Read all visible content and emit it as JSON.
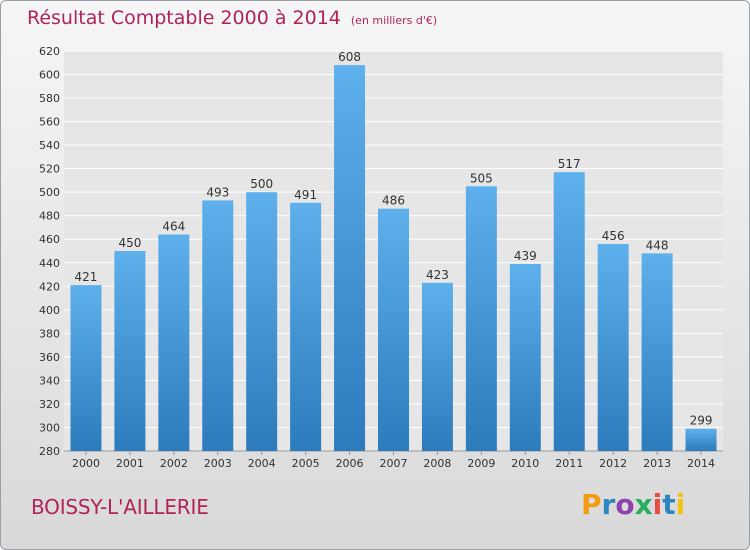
{
  "title": "Résultat Comptable 2000 à 2014",
  "subtitle": "(en milliers d'€)",
  "commune": "BOISSY-L'AILLERIE",
  "logo": {
    "letters": [
      "P",
      "r",
      "o",
      "x",
      "i",
      "t",
      "i"
    ],
    "colors": [
      "#f39c12",
      "#2e86c1",
      "#8e44ad",
      "#27ae60",
      "#e74c3c",
      "#2e86c1",
      "#f1c40f"
    ]
  },
  "colors": {
    "bar_top": "#5eb0ec",
    "bar_bottom": "#2c7bbd",
    "plot_bg": "#e6e6e6",
    "grid": "#ffffff",
    "title": "#b0235b"
  },
  "chart_data": {
    "type": "bar",
    "title": "Résultat Comptable 2000 à 2014",
    "xlabel": "",
    "ylabel": "",
    "categories": [
      "2000",
      "2001",
      "2002",
      "2003",
      "2004",
      "2005",
      "2006",
      "2007",
      "2008",
      "2009",
      "2010",
      "2011",
      "2012",
      "2013",
      "2014"
    ],
    "values": [
      421,
      450,
      464,
      493,
      500,
      491,
      608,
      486,
      423,
      505,
      439,
      517,
      456,
      448,
      299
    ],
    "ylim": [
      280,
      620
    ],
    "yticks": [
      280,
      300,
      320,
      340,
      360,
      380,
      400,
      420,
      440,
      460,
      480,
      500,
      520,
      540,
      560,
      580,
      600,
      620
    ],
    "grid": true
  }
}
